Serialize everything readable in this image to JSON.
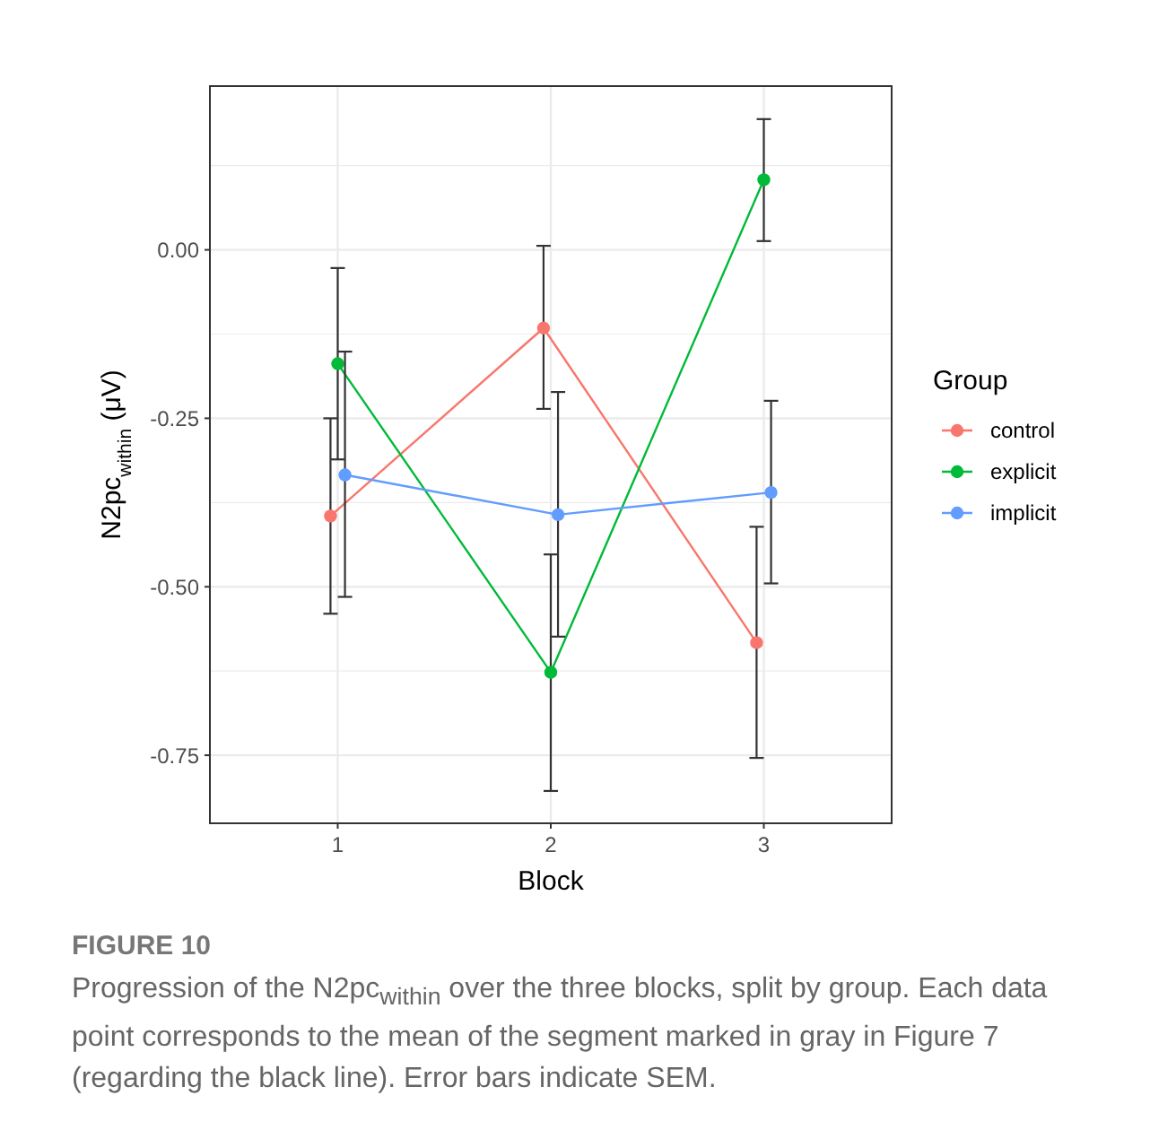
{
  "chart_data": {
    "type": "line",
    "categories": [
      "1",
      "2",
      "3"
    ],
    "xlabel": "Block",
    "ylabel": "N2pc$_{within}$ (μV)",
    "legend_title": "Group",
    "legend": "right",
    "marker": "circle",
    "grid": true,
    "ylim": [
      -0.851,
      0.243
    ],
    "yticks": [
      {
        "value": 0,
        "label": "0.00"
      },
      {
        "value": -0.25,
        "label": "-0.25"
      },
      {
        "value": -0.5,
        "label": "-0.50"
      },
      {
        "value": -0.75,
        "label": "-0.75"
      }
    ],
    "series": [
      {
        "name": "control",
        "color": "#f8766d",
        "values": [
          -0.395,
          -0.116,
          -0.583
        ],
        "errors": [
          [
            -0.54,
            -0.25
          ],
          [
            -0.236,
            0.006
          ],
          [
            -0.754,
            -0.411
          ]
        ]
      },
      {
        "name": "explicit",
        "color": "#00ba38",
        "values": [
          -0.169,
          -0.627,
          0.104
        ],
        "errors": [
          [
            -0.311,
            -0.027
          ],
          [
            -0.803,
            -0.452
          ],
          [
            0.013,
            0.194
          ]
        ]
      },
      {
        "name": "implicit",
        "color": "#619cff",
        "values": [
          -0.334,
          -0.393,
          -0.36
        ],
        "errors": [
          [
            -0.515,
            -0.151
          ],
          [
            -0.574,
            -0.211
          ],
          [
            -0.495,
            -0.224
          ]
        ]
      }
    ],
    "annotations": [
      "FIGURE 10",
      "Progression of the N2pc$_{within}$ over the three blocks, split by group. Each data point corresponds to the mean of the segment marked in gray in Figure 7 (regarding the black line). Error bars indicate SEM."
    ]
  }
}
